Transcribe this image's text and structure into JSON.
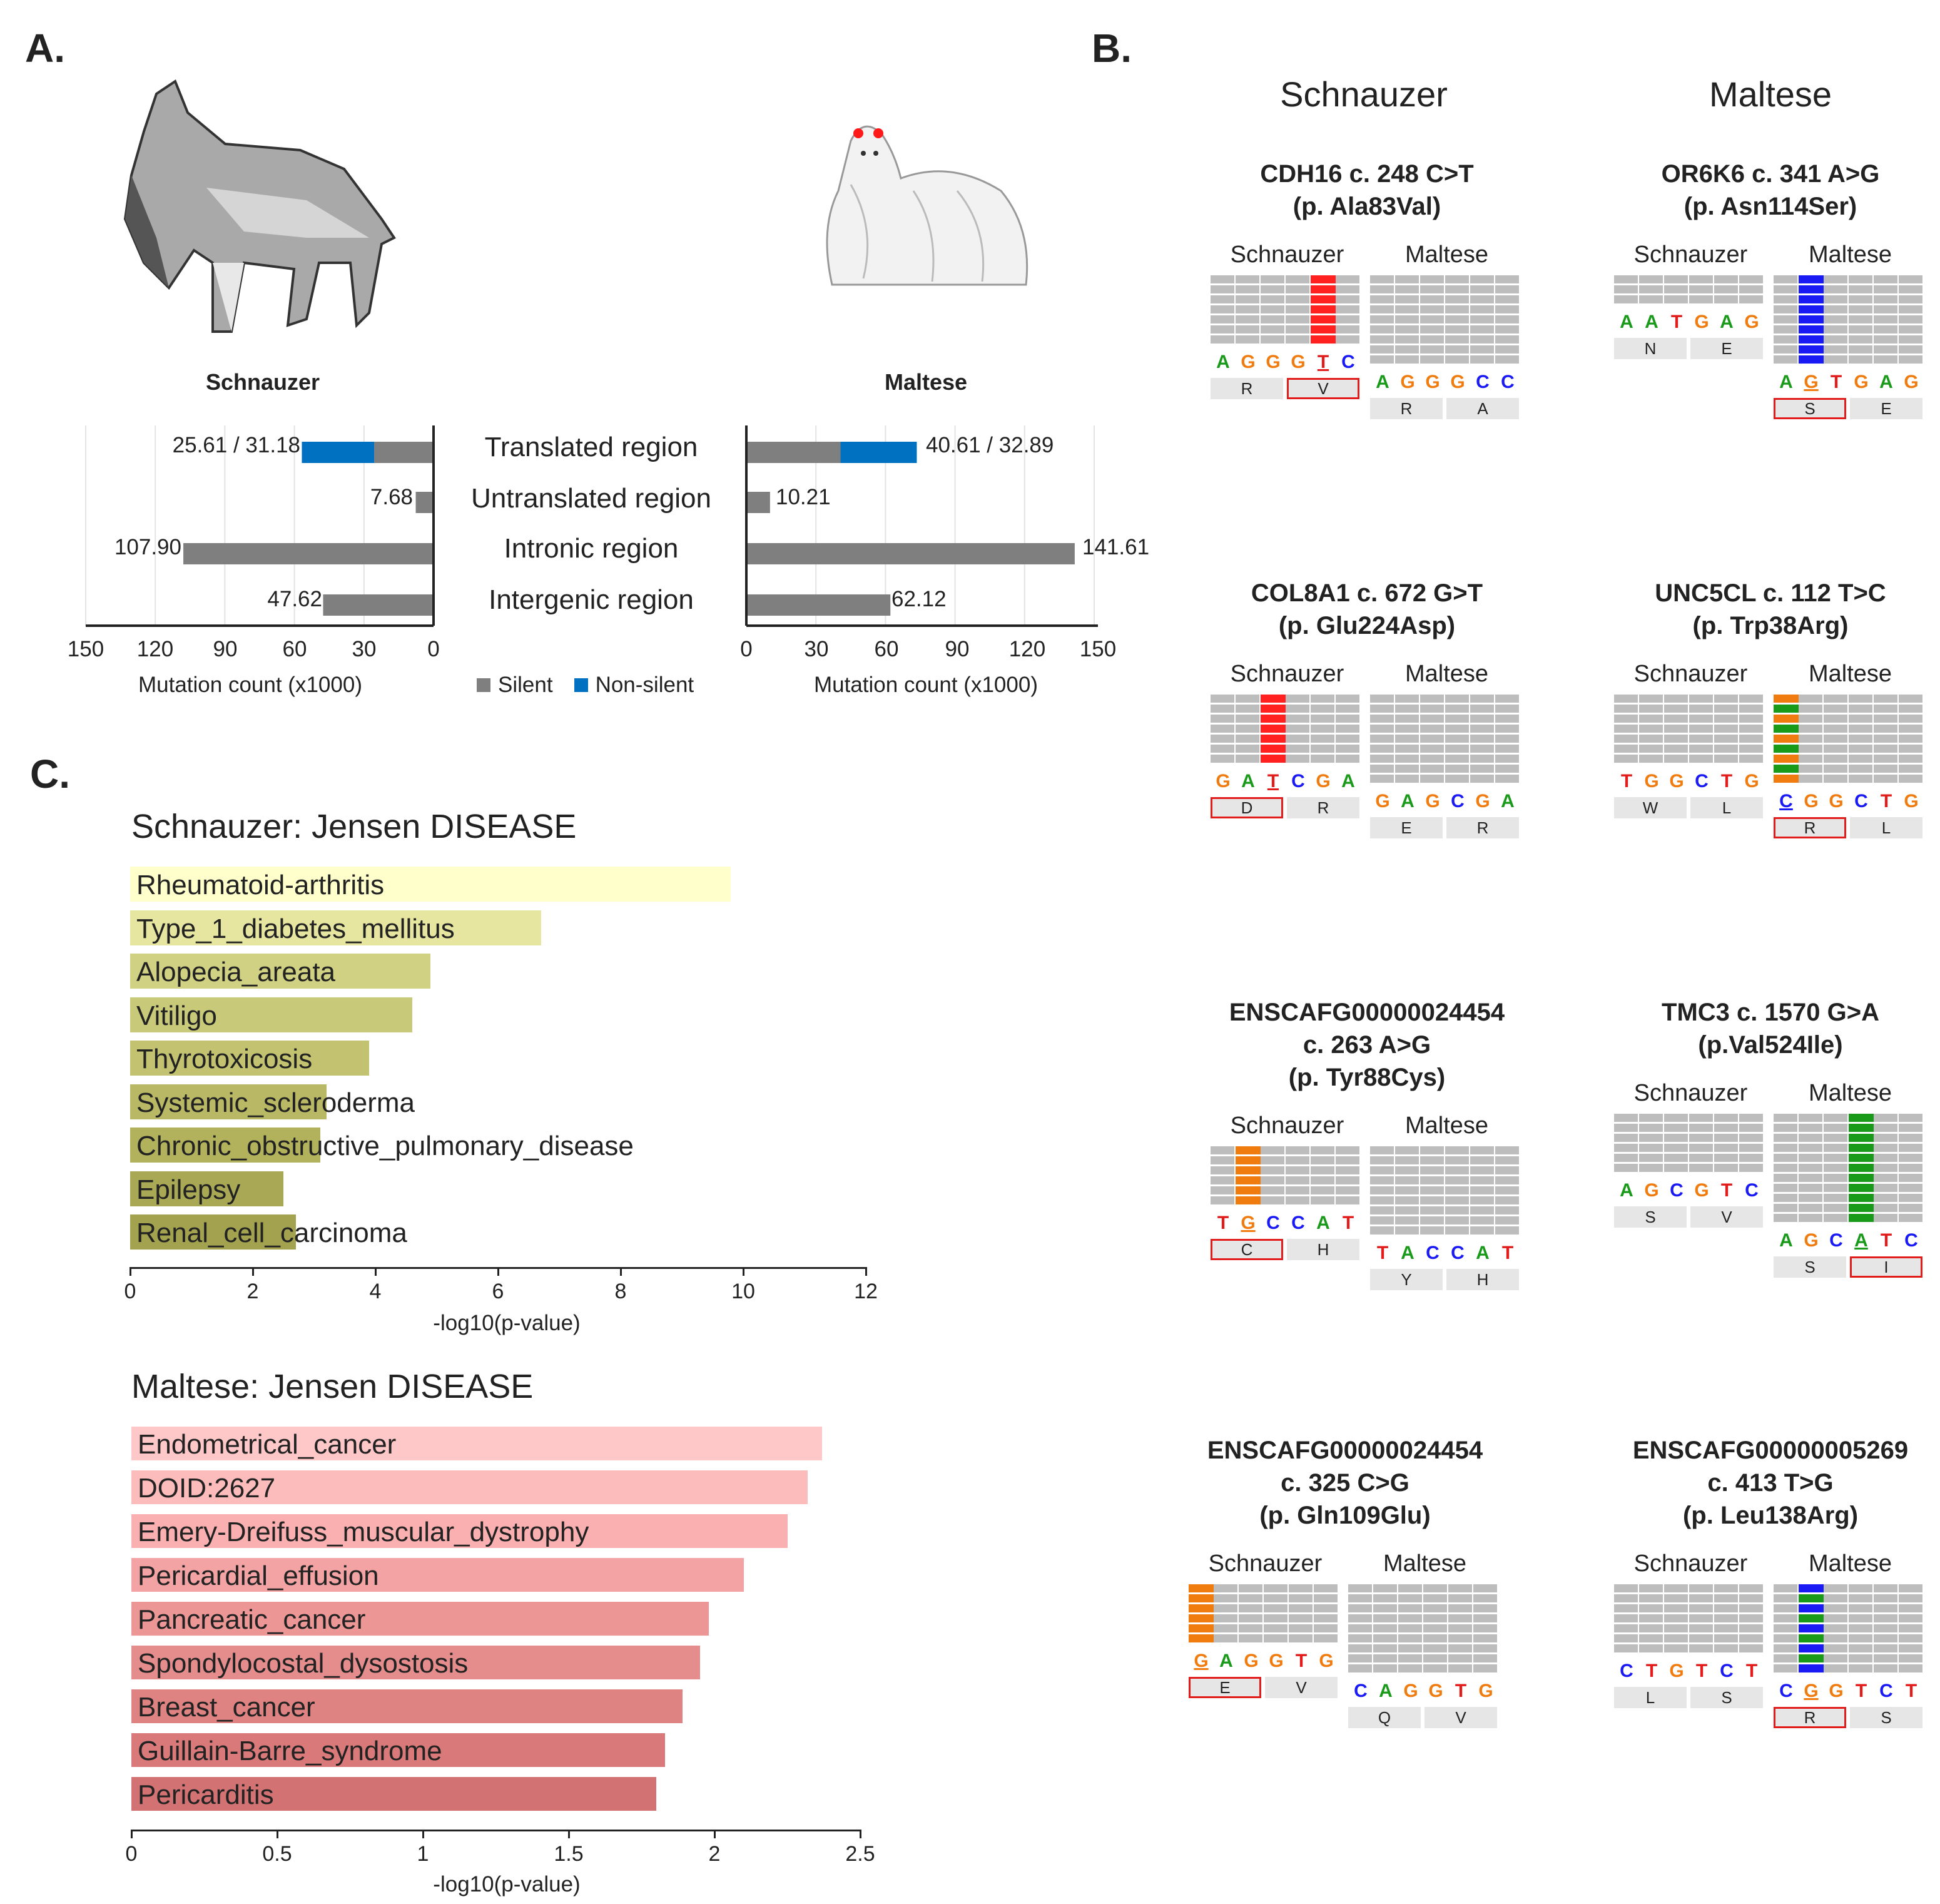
{
  "panels": {
    "a": "A.",
    "b": "B.",
    "c": "C."
  },
  "panel_a": {
    "schnauzer_label": "Schnauzer",
    "maltese_label": "Maltese",
    "regions": [
      "Translated  region",
      "Untranslated  region",
      "Intronic region",
      "Intergenic region"
    ],
    "schnauzer_values": [
      "25.61 / 31.18",
      "7.68",
      "107.90",
      "47.62"
    ],
    "maltese_values": [
      "40.61 / 32.89",
      "10.21",
      "141.61",
      "62.12"
    ],
    "schnauzer_ticks": [
      "150",
      "120",
      "90",
      "60",
      "30",
      "0"
    ],
    "maltese_ticks": [
      "0",
      "30",
      "60",
      "90",
      "120",
      "150"
    ],
    "xlabel": "Mutation count (x1000)",
    "legend_silent": "Silent",
    "legend_nonsilent": "Non-silent",
    "colors": {
      "silent": "#7f7f7f",
      "nonsilent": "#0070c0"
    }
  },
  "chart_data": [
    {
      "type": "bar",
      "title": "Schnauzer",
      "categories": [
        "Translated region",
        "Untranslated region",
        "Intronic region",
        "Intergenic region"
      ],
      "series": [
        {
          "name": "Silent",
          "values": [
            25.61,
            7.68,
            107.9,
            47.62
          ]
        },
        {
          "name": "Non-silent",
          "values": [
            31.18,
            0,
            0,
            0
          ]
        }
      ],
      "xlabel": "Mutation count (x1000)",
      "xlim": [
        0,
        150
      ]
    },
    {
      "type": "bar",
      "title": "Maltese",
      "categories": [
        "Translated region",
        "Untranslated region",
        "Intronic region",
        "Intergenic region"
      ],
      "series": [
        {
          "name": "Silent",
          "values": [
            40.61,
            10.21,
            141.61,
            62.12
          ]
        },
        {
          "name": "Non-silent",
          "values": [
            32.89,
            0,
            0,
            0
          ]
        }
      ],
      "xlabel": "Mutation count (x1000)",
      "xlim": [
        0,
        150
      ]
    },
    {
      "type": "bar",
      "title": "Schnauzer: Jensen DISEASE",
      "categories": [
        "Rheumatoid-arthritis",
        "Type_1_diabetes_mellitus",
        "Alopecia_areata",
        "Vitiligo",
        "Thyrotoxicosis",
        "Systemic_scleroderma",
        "Chronic_obstructive_pulmonary_disease",
        "Epilepsy",
        "Renal_cell_carcinoma"
      ],
      "values": [
        9.8,
        6.7,
        4.9,
        4.6,
        3.9,
        3.2,
        3.1,
        2.5,
        2.7
      ],
      "xlabel": "-log10(p-value)",
      "xlim": [
        0,
        12
      ],
      "ticks": [
        "0",
        "2",
        "4",
        "6",
        "8",
        "10",
        "12"
      ],
      "colors": [
        "#ffffcc",
        "#e6e6a0",
        "#d1d183",
        "#c9c97a",
        "#c2c270",
        "#b9b965",
        "#b2b25d",
        "#a9a955",
        "#a3a34f"
      ]
    },
    {
      "type": "bar",
      "title": "Maltese: Jensen DISEASE",
      "categories": [
        "Endometrical_cancer",
        "DOID:2627",
        "Emery-Dreifuss_muscular_dystrophy",
        "Pericardial_effusion",
        "Pancreatic_cancer",
        "Spondylocostal_dysostosis",
        "Breast_cancer",
        "Guillain-Barre_syndrome",
        "Pericarditis"
      ],
      "values": [
        2.37,
        2.32,
        2.25,
        2.1,
        1.98,
        1.95,
        1.89,
        1.83,
        1.8
      ],
      "xlabel": "-log10(p-value)",
      "xlim": [
        0,
        2.5
      ],
      "ticks": [
        "0",
        "0.5",
        "1",
        "1.5",
        "2",
        "2.5"
      ],
      "colors": [
        "#ffc8c8",
        "#fdbcbc",
        "#fab0b0",
        "#f3a3a3",
        "#ec9696",
        "#e58c8c",
        "#de8282",
        "#d97979",
        "#d37272"
      ]
    }
  ],
  "panel_b": {
    "col_schnauzer": "Schnauzer",
    "col_maltese": "Maltese",
    "variants": [
      {
        "title1": "CDH16 c. 248 C>T",
        "title2": "(p. Ala83Val)",
        "title3": "",
        "left": "Schnauzer",
        "right": "Maltese",
        "lbases": [
          "A",
          "G",
          "G",
          "G",
          "T",
          "C"
        ],
        "laa": [
          "R",
          "V"
        ],
        "rbases": [
          "A",
          "G",
          "G",
          "G",
          "C",
          "C"
        ],
        "raa": [
          "R",
          "A"
        ]
      },
      {
        "title1": "OR6K6 c. 341 A>G",
        "title2": "(p. Asn114Ser)",
        "title3": "",
        "left": "Schnauzer",
        "right": "Maltese",
        "lbases": [
          "A",
          "A",
          "T",
          "G",
          "A",
          "G"
        ],
        "laa": [
          "N",
          "E"
        ],
        "rbases": [
          "A",
          "G",
          "T",
          "G",
          "A",
          "G"
        ],
        "raa": [
          "S",
          "E"
        ]
      },
      {
        "title1": "COL8A1 c. 672 G>T",
        "title2": "(p. Glu224Asp)",
        "title3": "",
        "left": "Schnauzer",
        "right": "Maltese",
        "lbases": [
          "G",
          "A",
          "T",
          "C",
          "G",
          "A"
        ],
        "laa": [
          "D",
          "R"
        ],
        "rbases": [
          "G",
          "A",
          "G",
          "C",
          "G",
          "A"
        ],
        "raa": [
          "E",
          "R"
        ]
      },
      {
        "title1": "UNC5CL c. 112 T>C",
        "title2": "(p. Trp38Arg)",
        "title3": "",
        "left": "Schnauzer",
        "right": "Maltese",
        "lbases": [
          "T",
          "G",
          "G",
          "C",
          "T",
          "G"
        ],
        "laa": [
          "W",
          "L"
        ],
        "rbases": [
          "C",
          "G",
          "G",
          "C",
          "T",
          "G"
        ],
        "raa": [
          "R",
          "L"
        ]
      },
      {
        "title1": "ENSCAFG00000024454",
        "title2": "c. 263 A>G",
        "title3": "(p. Tyr88Cys)",
        "left": "Schnauzer",
        "right": "Maltese",
        "lbases": [
          "T",
          "G",
          "C",
          "C",
          "A",
          "T"
        ],
        "laa": [
          "C",
          "H"
        ],
        "rbases": [
          "T",
          "A",
          "C",
          "C",
          "A",
          "T"
        ],
        "raa": [
          "Y",
          "H"
        ]
      },
      {
        "title1": "TMC3 c. 1570 G>A",
        "title2": "(p.Val524Ile)",
        "title3": "",
        "left": "Schnauzer",
        "right": "Maltese",
        "lbases": [
          "A",
          "G",
          "C",
          "G",
          "T",
          "C"
        ],
        "laa": [
          "S",
          "V"
        ],
        "rbases": [
          "A",
          "G",
          "C",
          "A",
          "T",
          "C"
        ],
        "raa": [
          "S",
          "I"
        ]
      },
      {
        "title1": "ENSCAFG00000024454",
        "title2": "c. 325 C>G",
        "title3": "(p. Gln109Glu)",
        "left": "Schnauzer",
        "right": "Maltese",
        "lbases": [
          "G",
          "A",
          "G",
          "G",
          "T",
          "G"
        ],
        "laa": [
          "E",
          "V"
        ],
        "rbases": [
          "C",
          "A",
          "G",
          "G",
          "T",
          "G"
        ],
        "raa": [
          "Q",
          "V"
        ]
      },
      {
        "title1": "ENSCAFG00000005269",
        "title2": "c. 413 T>G",
        "title3": "(p. Leu138Arg)",
        "left": "Schnauzer",
        "right": "Maltese",
        "lbases": [
          "C",
          "T",
          "G",
          "T",
          "C",
          "T"
        ],
        "laa": [
          "L",
          "S"
        ],
        "rbases": [
          "C",
          "G",
          "G",
          "T",
          "C",
          "T"
        ],
        "raa": [
          "R",
          "S"
        ]
      }
    ]
  }
}
